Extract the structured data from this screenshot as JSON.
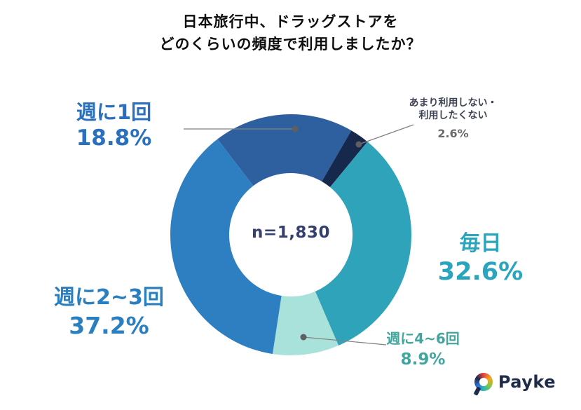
{
  "title": {
    "line1": "日本旅行中、ドラッグストアを",
    "line2": "どのくらいの頻度で利用しましたか？"
  },
  "center_label": "n=1,830",
  "labels": {
    "weekly1": {
      "name": "週に1回",
      "pct": "18.8%"
    },
    "rarely": {
      "line1": "あまり利用しない・",
      "line2": "利用したくない",
      "pct": "2.6%"
    },
    "everyday": {
      "name": "毎日",
      "pct": "32.6%"
    },
    "weekly46": {
      "name": "週に4~6回",
      "pct": "8.9%"
    },
    "weekly23": {
      "name": "週に2~3回",
      "pct": "37.2%"
    }
  },
  "logo": {
    "text": "Payke"
  },
  "chart_data": {
    "type": "pie",
    "donut": true,
    "title": "日本旅行中、ドラッグストアをどのくらいの頻度で利用しましたか？",
    "center_text": "n=1,830",
    "sample_size": 1830,
    "start_angle_deg": -37.5,
    "direction": "clockwise",
    "legend_position": "none",
    "segments": [
      {
        "id": "weekly-1",
        "label": "週に1回",
        "value": 18.8,
        "color": "#2e5f9e",
        "label_color": "#2a70bd"
      },
      {
        "id": "rarely",
        "label": "あまり利用しない・利用したくない",
        "value": 2.6,
        "color": "#16294d",
        "label_color": "#3f4454"
      },
      {
        "id": "everyday",
        "label": "毎日",
        "value": 32.6,
        "color": "#2fa3b9",
        "label_color": "#29a5bd"
      },
      {
        "id": "weekly-4-6",
        "label": "週に4~6回",
        "value": 8.9,
        "color": "#a9e2da",
        "label_color": "#42a69e"
      },
      {
        "id": "weekly-2-3",
        "label": "週に2~3回",
        "value": 37.2,
        "color": "#2e7fc2",
        "label_color": "#2a7fc0"
      }
    ]
  }
}
